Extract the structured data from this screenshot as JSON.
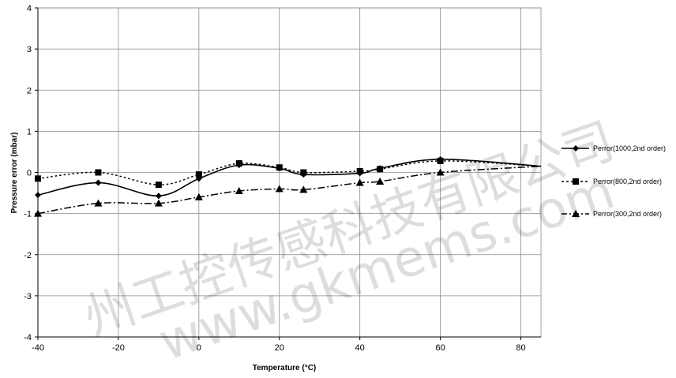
{
  "chart_data": {
    "type": "line",
    "title": "",
    "xlabel": "Temperature (°C)",
    "ylabel": "Pressure error (mbar)",
    "xlim": [
      -40,
      85
    ],
    "ylim": [
      -4,
      4
    ],
    "xticks": [
      -40,
      -20,
      0,
      20,
      40,
      60,
      80
    ],
    "yticks": [
      4,
      3,
      2,
      1,
      0,
      -1,
      -2,
      -3,
      -4
    ],
    "grid": true,
    "legend_position": "right",
    "series": [
      {
        "name": "Perror(1000,2nd order)",
        "marker": "diamond",
        "line": "solid",
        "x": [
          -40,
          -25,
          -10,
          0,
          10,
          20,
          26,
          40,
          45,
          60,
          85
        ],
        "y": [
          -0.55,
          -0.25,
          -0.57,
          -0.15,
          0.18,
          0.1,
          -0.05,
          -0.02,
          0.1,
          0.32,
          0.15
        ]
      },
      {
        "name": "Perror(800,2nd order)",
        "marker": "square",
        "line": "dotted",
        "x": [
          -40,
          -25,
          -10,
          0,
          10,
          20,
          26,
          40,
          45,
          60,
          85
        ],
        "y": [
          -0.15,
          0.0,
          -0.3,
          -0.05,
          0.22,
          0.12,
          0.0,
          0.03,
          0.08,
          0.28,
          0.15
        ]
      },
      {
        "name": "Perror(300,2nd order)",
        "marker": "triangle",
        "line": "dashdot",
        "x": [
          -40,
          -25,
          -10,
          0,
          10,
          20,
          26,
          40,
          45,
          60,
          85
        ],
        "y": [
          -1.0,
          -0.75,
          -0.75,
          -0.6,
          -0.45,
          -0.4,
          -0.42,
          -0.25,
          -0.22,
          0.0,
          0.15
        ]
      }
    ]
  },
  "watermark": {
    "line1": "州工控传感科技有限公司",
    "line2": "www.gkmems.com"
  }
}
